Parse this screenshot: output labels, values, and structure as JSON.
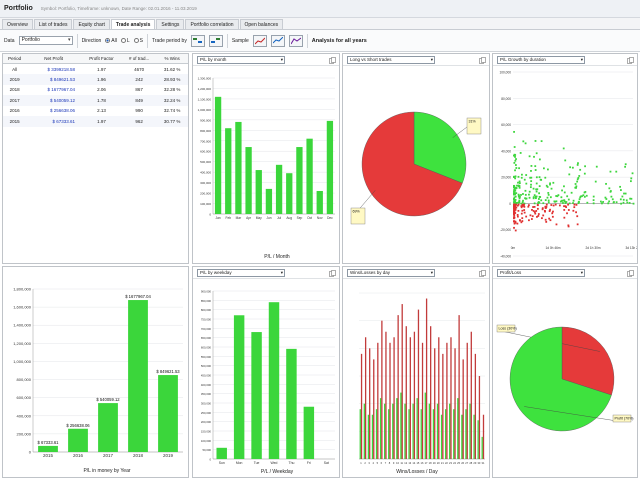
{
  "app": {
    "title": "Portfolio",
    "subtitle": "Symbol: Portfolio, Timeframe: unknown, Date Range: 02.01.2016 - 11.03.2019"
  },
  "tabs": [
    "Overview",
    "List of trades",
    "Equity chart",
    "Trade analysis",
    "Settings",
    "Portfolio correlation",
    "Open balances"
  ],
  "active_tab": 3,
  "toolbar": {
    "data_label": "Data",
    "data_value": "Portfolio",
    "direction_label": "Direction",
    "dir_all": "All",
    "dir_long": "L",
    "dir_short": "S",
    "trade_period_label": "Trade period by",
    "sample_label": "Sample",
    "analysis_text": "Analysis for all years"
  },
  "table": {
    "headers": [
      "Period",
      "Net Profit",
      "Profit Factor",
      "# of trad...",
      "% Wins"
    ],
    "rows": [
      [
        "All",
        "$ 3399218.58",
        "1.97",
        "4670",
        "31.62 %"
      ],
      [
        "2019",
        "$ 849621.53",
        "1.96",
        "242",
        "28.93 %"
      ],
      [
        "2018",
        "$ 1677967.04",
        "2.06",
        "867",
        "32.28 %"
      ],
      [
        "2017",
        "$ 540059.12",
        "1.78",
        "849",
        "32.24 %"
      ],
      [
        "2016",
        "$ 256638.06",
        "2.13",
        "990",
        "32.74 %"
      ],
      [
        "2015",
        "$ 67333.61",
        "1.97",
        "962",
        "30.77 %"
      ]
    ]
  },
  "panels": {
    "month": {
      "dropdown": "P/L by month",
      "axis_title": "P/L / Month"
    },
    "longshort": {
      "dropdown": "Long vs Short trades"
    },
    "duration": {
      "dropdown": "P/L Growth by duration"
    },
    "year": {
      "axis_title": "P/L in money by Year"
    },
    "weekday": {
      "dropdown": "P/L by weekday",
      "axis_title": "P/L / Weekday"
    },
    "winloss": {
      "dropdown": "Wins/Losses by day",
      "axis_title": "Wins/Losses / Day"
    },
    "profitloss": {
      "dropdown": "Profit/Loss"
    }
  },
  "chart_data": [
    {
      "type": "bar",
      "id": "month",
      "categories": [
        "Jan",
        "Feb",
        "Mar",
        "Apr",
        "May",
        "Jun",
        "Jul",
        "Aug",
        "Sep",
        "Oct",
        "Nov",
        "Dec"
      ],
      "values": [
        1120000,
        820000,
        880000,
        640000,
        420000,
        240000,
        470000,
        390000,
        640000,
        720000,
        220000,
        890000
      ],
      "ylim": [
        0,
        1300000
      ],
      "yticks": [
        "0",
        "100,000",
        "200,000",
        "300,000",
        "400,000",
        "500,000",
        "600,000",
        "700,000",
        "800,000",
        "900,000",
        "1,000,000",
        "1,100,000",
        "1,200,000",
        "1,300,000"
      ],
      "colors": {
        "bar": "#3bd63b"
      }
    },
    {
      "type": "pie",
      "id": "longshort",
      "slices": [
        {
          "name": "Long trades",
          "value": 31,
          "label": "31%",
          "color": "#3ee23e"
        },
        {
          "name": "Short trades",
          "value": 69,
          "label": "69%",
          "color": "#e53a3a"
        }
      ]
    },
    {
      "type": "scatter",
      "id": "duration",
      "ylim": [
        -40000,
        100000
      ],
      "yticks": [
        "100,000",
        "80,000",
        "60,000",
        "40,000",
        "20,000",
        "0",
        "-20,000",
        "-40,000"
      ],
      "xticks": [
        "0m",
        "1d 0h 46m",
        "2d 1h 30m",
        "3d 13h 2m"
      ],
      "series": [
        {
          "name": "Wins",
          "color": "#3ed63e"
        },
        {
          "name": "Losses",
          "color": "#e03030"
        }
      ]
    },
    {
      "type": "bar",
      "id": "year",
      "categories": [
        "2015",
        "2016",
        "2017",
        "2018",
        "2019"
      ],
      "values": [
        67333.61,
        256638.06,
        540059.12,
        1677967.04,
        849621.53
      ],
      "labels": [
        "$ 67333.61",
        "$ 256638.06",
        "$ 540059.12",
        "$ 1677967.04",
        "$ 849621.53"
      ],
      "ylim": [
        0,
        1800000
      ],
      "yticks": [
        "0",
        "200,000",
        "400,000",
        "600,000",
        "800,000",
        "1,000,000",
        "1,200,000",
        "1,400,000",
        "1,600,000",
        "1,800,000"
      ],
      "colors": {
        "bar": "#3bd63b"
      }
    },
    {
      "type": "bar",
      "id": "weekday",
      "categories": [
        "Sun",
        "Mon",
        "Tue",
        "Wed",
        "Thu",
        "Fri",
        "Sat"
      ],
      "values": [
        60000,
        770000,
        680000,
        840000,
        590000,
        280000,
        0
      ],
      "ylim": [
        0,
        900000
      ],
      "yticks": [
        "0",
        "50,000",
        "100,000",
        "150,000",
        "200,000",
        "250,000",
        "300,000",
        "350,000",
        "400,000",
        "450,000",
        "500,000",
        "550,000",
        "600,000",
        "650,000",
        "700,000",
        "750,000",
        "800,000",
        "850,000",
        "900,000"
      ],
      "colors": {
        "bar": "#3bd63b"
      }
    },
    {
      "type": "bar",
      "id": "winloss",
      "categories": [
        "1",
        "2",
        "3",
        "4",
        "5",
        "6",
        "7",
        "8",
        "9",
        "10",
        "11",
        "12",
        "13",
        "14",
        "15",
        "16",
        "17",
        "18",
        "19",
        "20",
        "21",
        "22",
        "23",
        "24",
        "25",
        "26",
        "27",
        "28",
        "29",
        "30",
        "31"
      ],
      "series": [
        {
          "name": "Wins",
          "color": "#3ed63e",
          "values": [
            9,
            10,
            8,
            8,
            9,
            11,
            10,
            9,
            10,
            11,
            12,
            10,
            9,
            10,
            11,
            9,
            12,
            10,
            9,
            10,
            8,
            9,
            10,
            9,
            11,
            8,
            9,
            10,
            8,
            7,
            4
          ]
        },
        {
          "name": "Losses",
          "color": "#c23b3b",
          "values": [
            19,
            22,
            20,
            18,
            21,
            25,
            23,
            21,
            22,
            26,
            28,
            24,
            22,
            23,
            27,
            21,
            29,
            24,
            20,
            22,
            19,
            21,
            22,
            20,
            26,
            18,
            21,
            23,
            19,
            15,
            8
          ]
        }
      ],
      "ylim": [
        0,
        30
      ]
    },
    {
      "type": "pie",
      "id": "profitloss",
      "slices": [
        {
          "name": "Loss",
          "value": 30,
          "label": "Loss (30%)",
          "color": "#e53a3a"
        },
        {
          "name": "Profit",
          "value": 70,
          "label": "Profit (70%)",
          "color": "#3ee23e"
        }
      ]
    }
  ]
}
